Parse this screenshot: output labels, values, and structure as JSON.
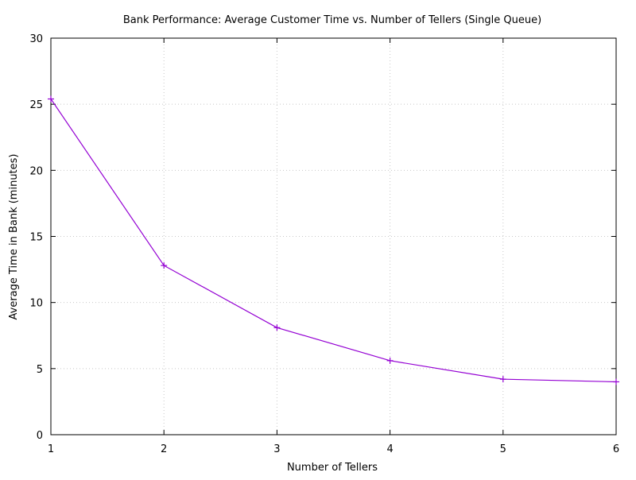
{
  "chart_data": {
    "type": "line",
    "title": "Bank Performance: Average Customer Time vs. Number of Tellers (Single Queue)",
    "xlabel": "Number of Tellers",
    "ylabel": "Average Time in Bank (minutes)",
    "xlim": [
      1,
      6
    ],
    "ylim": [
      0,
      30
    ],
    "xticks": [
      1,
      2,
      3,
      4,
      5,
      6
    ],
    "yticks": [
      0,
      5,
      10,
      15,
      20,
      25,
      30
    ],
    "grid": true,
    "series": [
      {
        "x": [
          1,
          2,
          3,
          4,
          5,
          6
        ],
        "y": [
          25.4,
          12.8,
          8.1,
          5.6,
          4.2,
          4.0
        ],
        "color": "#9400d3",
        "marker": "plus"
      }
    ]
  }
}
